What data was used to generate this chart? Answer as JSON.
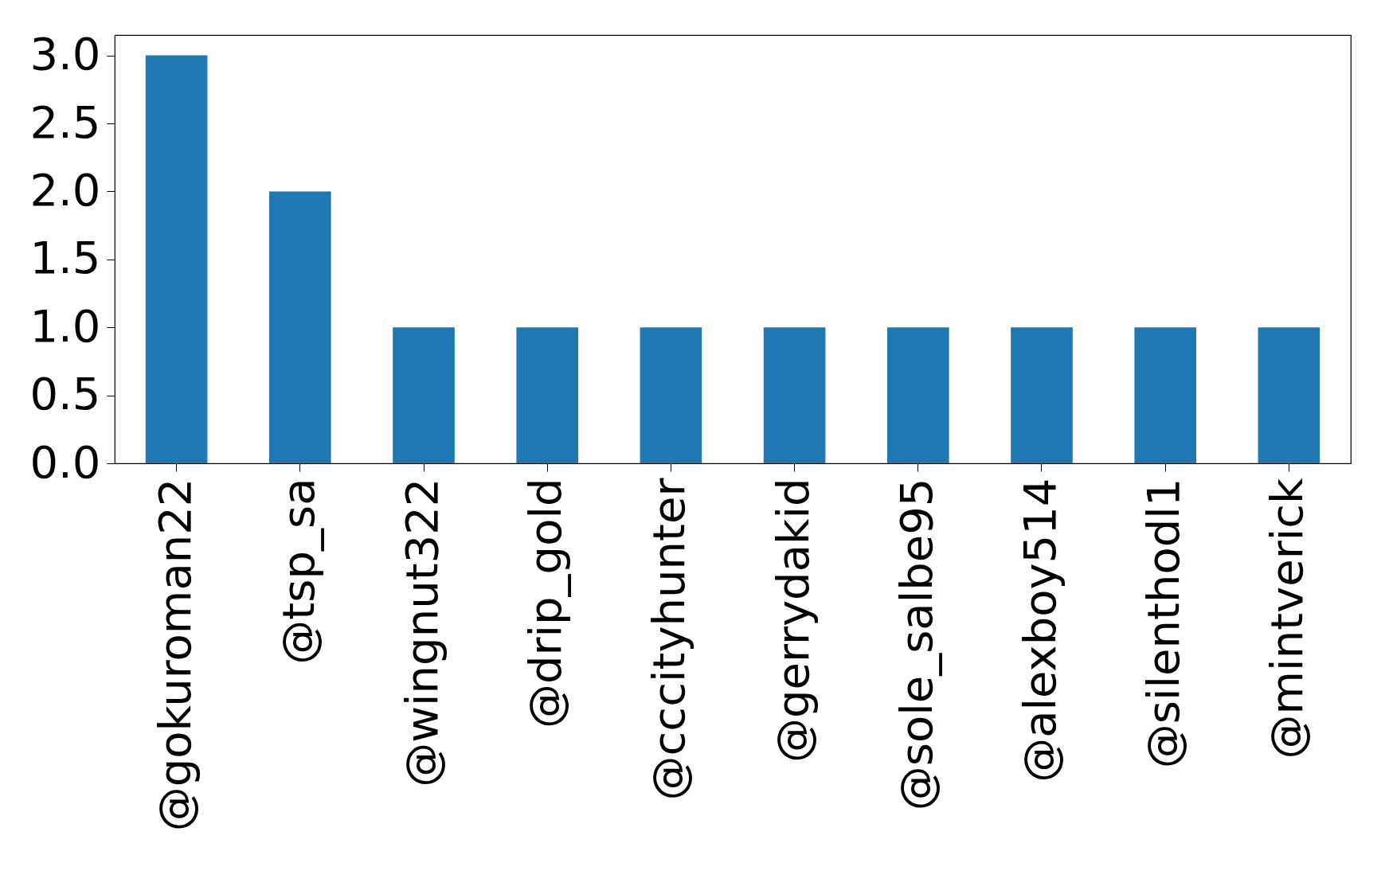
{
  "chart_data": {
    "type": "bar",
    "categories": [
      "@gokuroman22",
      "@tsp_sa",
      "@wingnut322",
      "@drip_gold",
      "@cccityhunter",
      "@gerrydakid",
      "@sole_salbe95",
      "@alexboy514",
      "@silenthodl1",
      "@mintverick"
    ],
    "values": [
      3,
      2,
      1,
      1,
      1,
      1,
      1,
      1,
      1,
      1
    ],
    "color": "#1f77b4",
    "ylim": [
      0,
      3.15
    ],
    "yticks": [
      {
        "value": 0,
        "label": "0.0"
      },
      {
        "value": 0.5,
        "label": "0.5"
      },
      {
        "value": 1,
        "label": "1.0"
      },
      {
        "value": 1.5,
        "label": "1.5"
      },
      {
        "value": 2,
        "label": "2.0"
      },
      {
        "value": 2.5,
        "label": "2.5"
      },
      {
        "value": 3,
        "label": "3.0"
      }
    ],
    "grid": false
  }
}
